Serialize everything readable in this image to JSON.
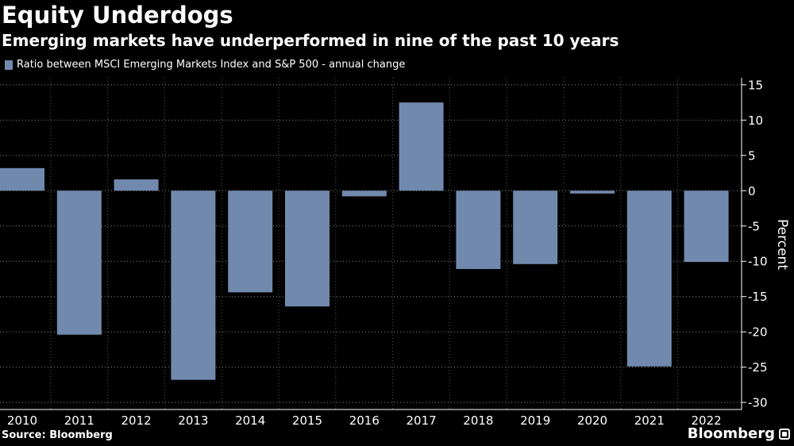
{
  "header": {
    "title": "Equity Underdogs",
    "subtitle": "Emerging markets have underperformed in nine of the past 10 years"
  },
  "legend": {
    "label": "Ratio between MSCI Emerging Markets Index and S&P 500 - annual change"
  },
  "footer": {
    "source": "Source: Bloomberg",
    "brand": "Bloomberg"
  },
  "colors": {
    "background": "#000000",
    "bar": "#7189ad",
    "grid": "#ffffff",
    "text": "#ffffff"
  },
  "chart_data": {
    "type": "bar",
    "title": "Equity Underdogs",
    "subtitle": "Emerging markets have underperformed in nine of the past 10 years",
    "xlabel": "",
    "ylabel": "Percent",
    "ylim": [
      -31,
      16
    ],
    "yticks": [
      15,
      10,
      5,
      0,
      -5,
      -10,
      -15,
      -20,
      -25,
      -30
    ],
    "grid": true,
    "grid_style": "dotted",
    "legend_position": "top-left",
    "axis_side": "right",
    "categories": [
      "2010",
      "2011",
      "2012",
      "2013",
      "2014",
      "2015",
      "2016",
      "2017",
      "2018",
      "2019",
      "2020",
      "2021",
      "2022"
    ],
    "series": [
      {
        "name": "Ratio between MSCI Emerging Markets Index and S&P 500 - annual change",
        "values": [
          3.2,
          -20.4,
          1.6,
          -26.8,
          -14.4,
          -16.4,
          -0.8,
          12.5,
          -11.1,
          -10.4,
          -0.4,
          -24.9,
          -10.1
        ]
      }
    ]
  }
}
